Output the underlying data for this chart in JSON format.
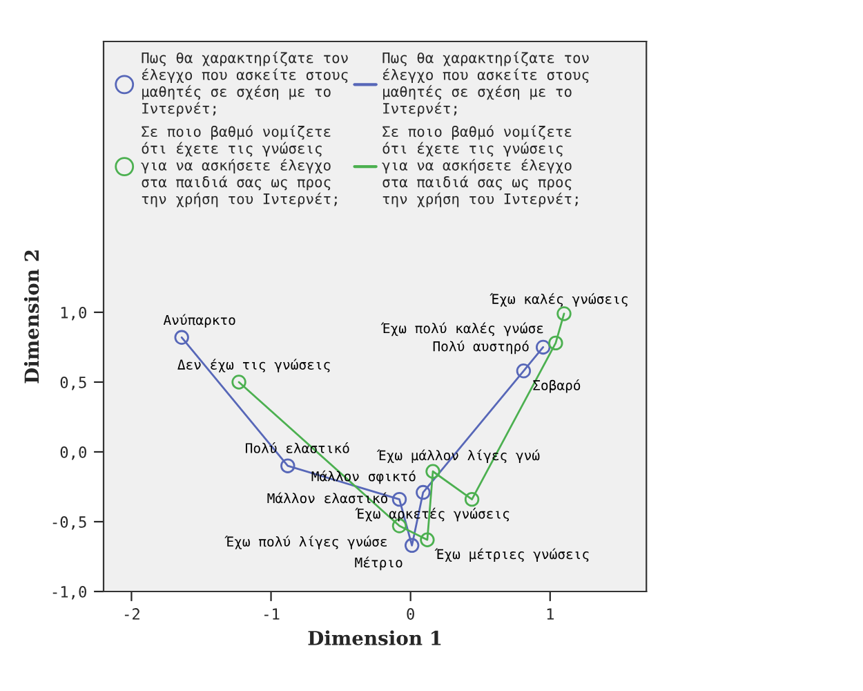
{
  "chart_data": {
    "type": "line",
    "xlabel": "Dimension 1",
    "ylabel": "Dimension 2",
    "series": [
      {
        "name": "Πως θα χαρακτηρίζατε τον\nέλεγχο που ασκείτε στους\nμαθητές σε σχέση με το\nΙντερνέτ;",
        "color": "#5767b8",
        "x": [
          -1.64,
          -0.88,
          -0.08,
          0.01,
          0.09,
          0.81,
          0.95
        ],
        "values": [
          0.82,
          -0.1,
          -0.34,
          -0.67,
          -0.29,
          0.58,
          0.75
        ]
      },
      {
        "name": "Σε ποιο βαθμό νομίζετε\nότι έχετε τις γνώσεις\nγια να ασκήσετε έλεγχο\nστα παιδιά σας ως προς\nτην χρήση του Ιντερνέτ;",
        "color": "#4cb050",
        "x": [
          -1.23,
          -0.08,
          0.12,
          0.16,
          0.44,
          1.04,
          1.1
        ],
        "values": [
          0.5,
          -0.53,
          -0.63,
          -0.14,
          -0.34,
          0.78,
          0.99
        ]
      }
    ],
    "annotations": [
      {
        "text": "Ανύπαρκτο",
        "x": -1.64,
        "y": 0.82
      },
      {
        "text": "Πολύ ελαστικό",
        "x": -0.88,
        "y": -0.1
      },
      {
        "text": "Μάλλον ελαστικό",
        "x": -0.08,
        "y": -0.34
      },
      {
        "text": "Μέτριο",
        "x": 0.01,
        "y": -0.67
      },
      {
        "text": "Μάλλον σφικτό",
        "x": 0.09,
        "y": -0.29
      },
      {
        "text": "Σοβαρό",
        "x": 0.81,
        "y": 0.58
      },
      {
        "text": "Πολύ αυστηρό",
        "x": 0.95,
        "y": 0.75
      },
      {
        "text": "Δεν έχω τις γνώσεις",
        "x": -1.23,
        "y": 0.5
      },
      {
        "text": "Έχω πολύ λίγες γνώσε",
        "x": -0.08,
        "y": -0.53
      },
      {
        "text": "Έχω μέτριες γνώσεις",
        "x": 0.12,
        "y": -0.63
      },
      {
        "text": "Έχω μάλλον λίγες γνώ",
        "x": 0.16,
        "y": -0.14
      },
      {
        "text": "Έχω αρκετές γνώσεις",
        "x": 0.44,
        "y": -0.34
      },
      {
        "text": "Έχω πολύ καλές γνώσε",
        "x": 1.04,
        "y": 0.78
      },
      {
        "text": "Έχω καλές γνώσεις",
        "x": 1.1,
        "y": 0.99
      }
    ],
    "xlim": [
      -2.2,
      1.69
    ],
    "ylim": [
      -1.0,
      2.94
    ],
    "xticks": [
      -2,
      -1,
      0,
      1
    ],
    "yticks": [
      {
        "value": -1.0,
        "label": "-1,0"
      },
      {
        "value": -0.5,
        "label": "-0,5"
      },
      {
        "value": 0.0,
        "label": "0,0"
      },
      {
        "value": 0.5,
        "label": "0,5"
      },
      {
        "value": 1.0,
        "label": "1,0"
      }
    ],
    "marker": "circle",
    "line_style": "solid",
    "legend": "top left",
    "grid": false
  }
}
